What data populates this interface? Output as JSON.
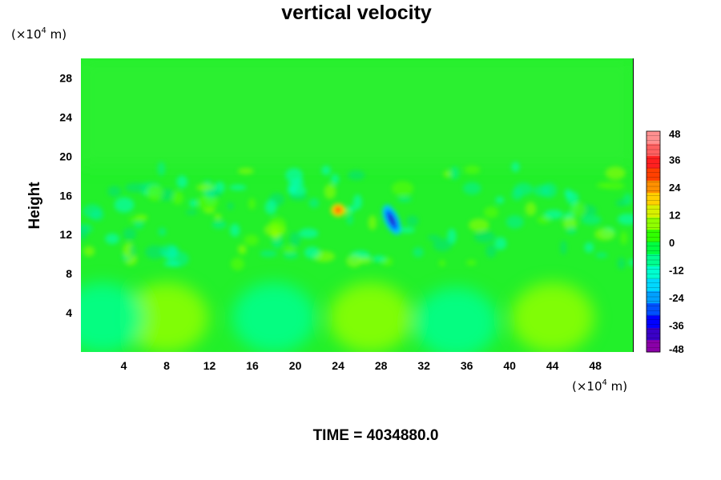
{
  "chart_data": {
    "type": "heatmap",
    "title": "vertical velocity",
    "ylabel": "Height",
    "xlabel": "",
    "x_unit": {
      "base": "(×10",
      "exp": "4",
      "unit": " m)"
    },
    "y_unit": {
      "base": "(×10",
      "exp": "4",
      "unit": " m)"
    },
    "xlim": [
      0,
      51.5
    ],
    "ylim": [
      0,
      30
    ],
    "x_ticks": [
      "4",
      "8",
      "12",
      "16",
      "20",
      "24",
      "28",
      "32",
      "36",
      "40",
      "44",
      "48"
    ],
    "y_ticks": [
      "4",
      "8",
      "12",
      "16",
      "20",
      "24",
      "28"
    ],
    "colorbar": {
      "range": [
        -48,
        48
      ],
      "labels": [
        "48",
        "36",
        "24",
        "12",
        "0",
        "-12",
        "-24",
        "-36",
        "-48"
      ],
      "colors": [
        "#8a00a8",
        "#3a00c8",
        "#0000ff",
        "#0050ff",
        "#00a0ff",
        "#00d8ff",
        "#00ffd0",
        "#00ff90",
        "#00ff40",
        "#30ff00",
        "#90ff00",
        "#d8f000",
        "#ffd000",
        "#ff9000",
        "#ff4000",
        "#ff2020",
        "#ff6060",
        "#ff9090"
      ]
    },
    "features": [
      {
        "label": "positive updraft",
        "x": 24.0,
        "y": 14.5,
        "value": 22
      },
      {
        "label": "negative downdraft",
        "x": 29.0,
        "y": 13.5,
        "value": -40
      },
      {
        "label": "near-surface positive cell",
        "x": 8.0,
        "y": 3.5,
        "value": 8
      },
      {
        "label": "near-surface positive cell",
        "x": 44.0,
        "y": 3.5,
        "value": 8
      },
      {
        "label": "near-surface positive cell",
        "x": 27.0,
        "y": 3.5,
        "value": 6
      },
      {
        "label": "near-surface negative cell",
        "x": 18.0,
        "y": 3.5,
        "value": -8
      },
      {
        "label": "near-surface negative cell",
        "x": 35.0,
        "y": 3.0,
        "value": -10
      },
      {
        "label": "near-surface negative cell",
        "x": 2.0,
        "y": 3.5,
        "value": -8
      }
    ]
  },
  "footer": {
    "time_label": "TIME = 4034880.0"
  }
}
